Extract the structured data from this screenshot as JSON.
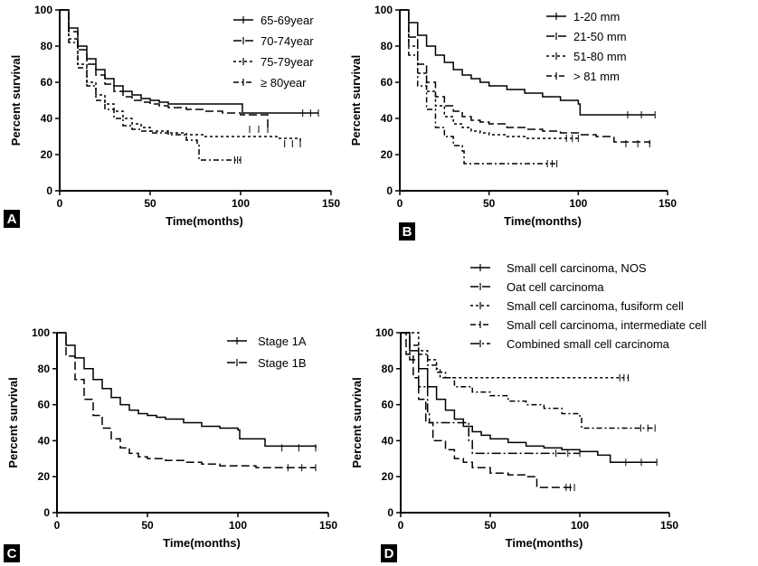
{
  "figure": {
    "chart_data": [
      {
        "type": "line",
        "panel_label": "A",
        "xlabel": "Time(months)",
        "ylabel": "Percent survival",
        "xlim": [
          0,
          150
        ],
        "ylim": [
          0,
          100
        ],
        "xticks": [
          0,
          50,
          100,
          150
        ],
        "yticks": [
          0,
          20,
          40,
          60,
          80,
          100
        ],
        "legend_position": "top-right",
        "series": [
          {
            "name": "65-69year",
            "dash": "",
            "x": [
              0,
              5,
              10,
              15,
              20,
              25,
              30,
              35,
              40,
              45,
              50,
              55,
              60,
              70,
              80,
              90,
              100,
              101,
              115,
              130,
              143
            ],
            "y": [
              100,
              90,
              80,
              73,
              67,
              62,
              58,
              55,
              53,
              51,
              50,
              49,
              48,
              48,
              48,
              48,
              48,
              43,
              43,
              43,
              43
            ]
          },
          {
            "name": "70-74year",
            "dash": "9 4",
            "x": [
              0,
              5,
              10,
              15,
              20,
              25,
              30,
              35,
              40,
              45,
              50,
              55,
              60,
              70,
              80,
              90,
              100,
              115
            ],
            "y": [
              100,
              88,
              78,
              70,
              64,
              59,
              55,
              52,
              50,
              49,
              48,
              47,
              46,
              45,
              44,
              43,
              42,
              34
            ]
          },
          {
            "name": "75-79year",
            "dash": "3 3",
            "x": [
              0,
              5,
              10,
              15,
              20,
              25,
              30,
              35,
              40,
              45,
              50,
              60,
              70,
              80,
              90,
              100,
              110,
              120,
              133
            ],
            "y": [
              100,
              84,
              70,
              60,
              53,
              48,
              44,
              40,
              37,
              35,
              33,
              32,
              31,
              30,
              30,
              30,
              30,
              29,
              26
            ]
          },
          {
            "name": "≥ 80year",
            "dash": "6 3 2 3",
            "x": [
              0,
              5,
              10,
              15,
              20,
              25,
              30,
              35,
              40,
              45,
              50,
              60,
              70,
              76,
              77,
              95,
              100
            ],
            "y": [
              100,
              82,
              68,
              58,
              50,
              45,
              40,
              36,
              34,
              33,
              32,
              31,
              28,
              26,
              17,
              17,
              17
            ]
          }
        ]
      },
      {
        "type": "line",
        "panel_label": "B",
        "xlabel": "Time(months)",
        "ylabel": "Percent survival",
        "xlim": [
          0,
          150
        ],
        "ylim": [
          0,
          100
        ],
        "xticks": [
          0,
          50,
          100,
          150
        ],
        "yticks": [
          0,
          20,
          40,
          60,
          80,
          100
        ],
        "legend_position": "top-right",
        "series": [
          {
            "name": "1-20 mm",
            "dash": "",
            "x": [
              0,
              5,
              10,
              15,
              20,
              25,
              30,
              35,
              40,
              45,
              50,
              60,
              70,
              80,
              90,
              100,
              101,
              110,
              120,
              143
            ],
            "y": [
              100,
              93,
              86,
              80,
              75,
              71,
              67,
              64,
              62,
              60,
              58,
              56,
              54,
              52,
              50,
              48,
              42,
              42,
              42,
              42
            ]
          },
          {
            "name": "21-50 mm",
            "dash": "9 4",
            "x": [
              0,
              5,
              10,
              15,
              20,
              25,
              30,
              35,
              40,
              45,
              50,
              60,
              70,
              80,
              90,
              100,
              110,
              120,
              140
            ],
            "y": [
              100,
              85,
              70,
              60,
              52,
              47,
              44,
              41,
              39,
              38,
              37,
              35,
              34,
              33,
              32,
              31,
              30,
              27,
              26
            ]
          },
          {
            "name": "51-80 mm",
            "dash": "3 3",
            "x": [
              0,
              5,
              10,
              15,
              20,
              25,
              30,
              35,
              40,
              45,
              50,
              60,
              70,
              80,
              90,
              100
            ],
            "y": [
              100,
              80,
              65,
              55,
              47,
              41,
              37,
              35,
              33,
              32,
              31,
              30,
              29,
              29,
              29,
              29
            ]
          },
          {
            "name": "> 81 mm",
            "dash": "6 3 2 3",
            "x": [
              0,
              5,
              10,
              15,
              20,
              25,
              30,
              35,
              36,
              60,
              80,
              88
            ],
            "y": [
              100,
              75,
              58,
              45,
              35,
              30,
              25,
              22,
              15,
              15,
              15,
              15
            ]
          }
        ]
      },
      {
        "type": "line",
        "panel_label": "C",
        "xlabel": "Time(months)",
        "ylabel": "Percent survival",
        "xlim": [
          0,
          150
        ],
        "ylim": [
          0,
          100
        ],
        "xticks": [
          0,
          50,
          100,
          150
        ],
        "yticks": [
          0,
          20,
          40,
          60,
          80,
          100
        ],
        "legend_position": "top-right",
        "series": [
          {
            "name": "Stage 1A",
            "dash": "",
            "x": [
              0,
              5,
              10,
              15,
              20,
              25,
              30,
              35,
              40,
              45,
              50,
              55,
              60,
              70,
              80,
              90,
              100,
              101,
              115,
              143
            ],
            "y": [
              100,
              93,
              86,
              80,
              74,
              69,
              64,
              60,
              57,
              55,
              54,
              53,
              52,
              50,
              48,
              47,
              46,
              41,
              37,
              36
            ]
          },
          {
            "name": "Stage 1B",
            "dash": "9 4",
            "x": [
              0,
              5,
              10,
              15,
              20,
              25,
              30,
              35,
              40,
              45,
              50,
              60,
              70,
              80,
              90,
              100,
              110,
              120,
              143
            ],
            "y": [
              100,
              87,
              74,
              63,
              54,
              47,
              41,
              36,
              33,
              31,
              30,
              29,
              28,
              27,
              26,
              26,
              25,
              25,
              25
            ]
          }
        ]
      },
      {
        "type": "line",
        "panel_label": "D",
        "xlabel": "Time(months)",
        "ylabel": "Percent survival",
        "xlim": [
          0,
          150
        ],
        "ylim": [
          0,
          100
        ],
        "xticks": [
          0,
          50,
          100,
          150
        ],
        "yticks": [
          0,
          20,
          40,
          60,
          80,
          100
        ],
        "legend_position": "top-left",
        "series": [
          {
            "name": "Small cell carcinoma, NOS",
            "dash": "",
            "x": [
              0,
              5,
              10,
              15,
              20,
              25,
              30,
              35,
              40,
              45,
              50,
              60,
              70,
              80,
              90,
              100,
              110,
              117,
              143
            ],
            "y": [
              100,
              90,
              80,
              70,
              63,
              57,
              52,
              48,
              45,
              43,
              41,
              39,
              37,
              36,
              35,
              34,
              32,
              28,
              28
            ]
          },
          {
            "name": "Oat cell carcinoma",
            "dash": "9 4",
            "x": [
              0,
              3,
              7,
              10,
              14,
              18,
              25,
              30,
              35,
              40,
              50,
              60,
              70,
              76,
              90,
              97
            ],
            "y": [
              100,
              88,
              75,
              63,
              50,
              40,
              35,
              30,
              28,
              25,
              22,
              21,
              20,
              14,
              14,
              14
            ]
          },
          {
            "name": "Small cell carcinoma, fusiform cell",
            "dash": "3 3",
            "x": [
              0,
              5,
              10,
              15,
              20,
              22,
              40,
              60,
              80,
              100,
              120,
              127
            ],
            "y": [
              100,
              100,
              90,
              85,
              80,
              75,
              75,
              75,
              75,
              75,
              75,
              75
            ]
          },
          {
            "name": "Small cell carcinoma, intermediate cell",
            "dash": "6 3 2 3",
            "x": [
              0,
              5,
              10,
              15,
              20,
              25,
              30,
              40,
              50,
              60,
              70,
              80,
              90,
              100,
              101,
              110,
              130,
              142
            ],
            "y": [
              100,
              93,
              88,
              82,
              78,
              75,
              70,
              67,
              65,
              62,
              60,
              58,
              55,
              53,
              47,
              47,
              47,
              47
            ]
          },
          {
            "name": "Combined small cell carcinoma",
            "dash": "10 3 2 3",
            "x": [
              0,
              5,
              10,
              15,
              16,
              30,
              38,
              40,
              60,
              80,
              100
            ],
            "y": [
              100,
              85,
              70,
              55,
              50,
              50,
              40,
              33,
              33,
              33,
              33
            ]
          }
        ]
      }
    ]
  }
}
